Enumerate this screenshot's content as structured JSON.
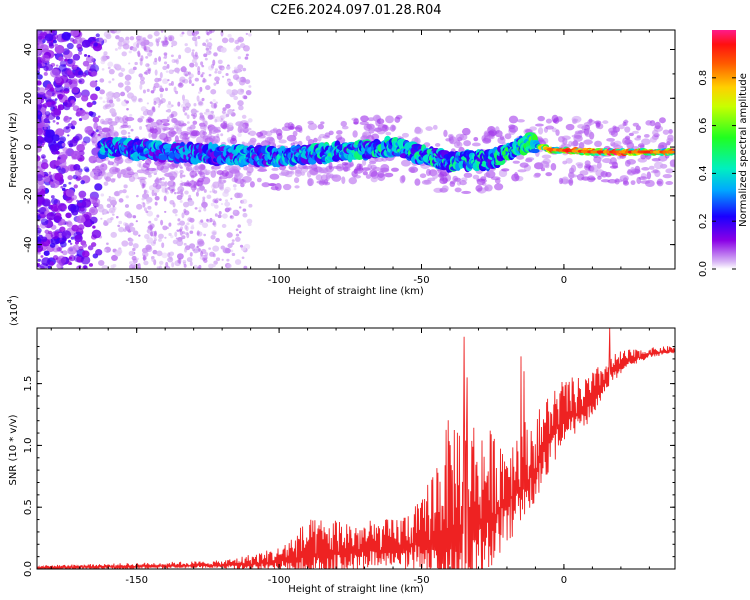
{
  "title": "C2E6.2024.097.01.28.R04",
  "colors": {
    "snr_line": "#ee2222",
    "spectrogram_background": "#ffffff",
    "axis": "#000000"
  },
  "chart_data": [
    {
      "type": "heatmap",
      "name": "spectrogram",
      "xlabel": "Height of straight line (km)",
      "ylabel": "Frequency (Hz)",
      "xlim": [
        -185,
        39
      ],
      "ylim": [
        -50,
        48
      ],
      "xticks": [
        -150,
        -100,
        -50,
        0
      ],
      "xtick_labels": [
        "-150",
        "-100",
        "-50",
        "0"
      ],
      "yticks": [
        -40,
        -20,
        0,
        20,
        40
      ],
      "ytick_labels": [
        "-40",
        "-20",
        "0",
        "20",
        "40"
      ],
      "colormap": "hsv-like (violet → blue → cyan → green → yellow → orange → red)",
      "colorbar": {
        "label": "Normalized spectral amplitude",
        "range": [
          0.0,
          1.0
        ],
        "ticks": [
          0.0,
          0.2,
          0.4,
          0.6,
          0.8
        ],
        "tick_labels": [
          "0.0",
          "0.2",
          "0.4",
          "0.6",
          "0.8"
        ]
      },
      "ridge": {
        "description": "main signal band near 0 Hz",
        "points": [
          {
            "x": -160,
            "y": 0,
            "amp": 0.4
          },
          {
            "x": -140,
            "y": -2,
            "amp": 0.35
          },
          {
            "x": -120,
            "y": -3,
            "amp": 0.35
          },
          {
            "x": -100,
            "y": -4,
            "amp": 0.4
          },
          {
            "x": -80,
            "y": -2,
            "amp": 0.45
          },
          {
            "x": -60,
            "y": 0,
            "amp": 0.45
          },
          {
            "x": -40,
            "y": -6,
            "amp": 0.45
          },
          {
            "x": -25,
            "y": -5,
            "amp": 0.45
          },
          {
            "x": -12,
            "y": 2,
            "amp": 0.55
          },
          {
            "x": -5,
            "y": -1,
            "amp": 0.85
          },
          {
            "x": 10,
            "y": -2,
            "amp": 0.95
          },
          {
            "x": 25,
            "y": -2,
            "amp": 0.95
          },
          {
            "x": 39,
            "y": -2,
            "amp": 0.85
          }
        ]
      }
    },
    {
      "type": "line",
      "name": "snr",
      "xlabel": "Height of straight line (km)",
      "ylabel": "SNR (10 * v/v)",
      "yscale_label": "(x10",
      "yscale_exponent": "4",
      "xlim": [
        -185,
        39
      ],
      "ylim": [
        0,
        1.95
      ],
      "xticks": [
        -150,
        -100,
        -50,
        0
      ],
      "xtick_labels": [
        "-150",
        "-100",
        "-50",
        "0"
      ],
      "yticks": [
        0.0,
        0.5,
        1.0,
        1.5
      ],
      "ytick_labels": [
        "0.0",
        "0.5",
        "1.0",
        "1.5"
      ],
      "envelope_x": [
        -185,
        -150,
        -120,
        -110,
        -100,
        -90,
        -80,
        -70,
        -60,
        -50,
        -45,
        -40,
        -35,
        -30,
        -25,
        -20,
        -15,
        -10,
        -5,
        0,
        5,
        10,
        15,
        20,
        25,
        30,
        39
      ],
      "envelope_base": [
        0.01,
        0.02,
        0.03,
        0.04,
        0.06,
        0.1,
        0.12,
        0.14,
        0.16,
        0.2,
        0.24,
        0.3,
        0.32,
        0.36,
        0.42,
        0.55,
        0.65,
        0.8,
        1.05,
        1.2,
        1.25,
        1.35,
        1.55,
        1.65,
        1.7,
        1.74,
        1.77
      ],
      "envelope_spread": [
        0.02,
        0.03,
        0.04,
        0.08,
        0.12,
        0.3,
        0.3,
        0.25,
        0.25,
        0.35,
        0.7,
        0.95,
        1.0,
        0.85,
        0.7,
        0.55,
        0.55,
        0.45,
        0.4,
        0.35,
        0.3,
        0.25,
        0.15,
        0.12,
        0.08,
        0.05,
        0.04
      ],
      "peaks": [
        {
          "x": -35,
          "y": 1.88
        },
        {
          "x": -34,
          "y": 1.55
        },
        {
          "x": -15,
          "y": 1.72
        },
        {
          "x": -14,
          "y": 1.6
        },
        {
          "x": 16,
          "y": 1.96
        }
      ]
    }
  ]
}
